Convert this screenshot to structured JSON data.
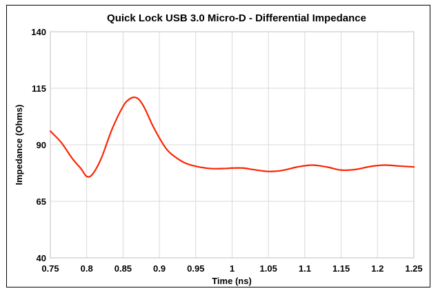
{
  "chart_data": {
    "type": "line",
    "title": "Quick Lock USB 3.0 Micro-D - Differential Impedance",
    "xlabel": "Time (ns)",
    "ylabel": "Impedance (Ohms)",
    "xlim": [
      0.75,
      1.25
    ],
    "ylim": [
      40,
      140
    ],
    "x_ticks": [
      "0.75",
      "0.8",
      "0.85",
      "0.9",
      "0.95",
      "1",
      "1.05",
      "1.1",
      "1.15",
      "1.2",
      "1.25"
    ],
    "y_ticks": [
      "40",
      "65",
      "90",
      "115",
      "140"
    ],
    "grid": true,
    "series_color": "#ff2200",
    "series": [
      {
        "x": [
          0.75,
          0.765,
          0.78,
          0.792,
          0.8,
          0.808,
          0.82,
          0.835,
          0.85,
          0.858,
          0.865,
          0.872,
          0.88,
          0.89,
          0.9,
          0.91,
          0.92,
          0.935,
          0.95,
          0.97,
          0.99,
          1.0,
          1.015,
          1.03,
          1.05,
          1.07,
          1.09,
          1.11,
          1.13,
          1.15,
          1.17,
          1.19,
          1.21,
          1.23,
          1.25
        ],
        "y": [
          96,
          91,
          84,
          79.5,
          76,
          77,
          84,
          97,
          107,
          110,
          111,
          110,
          106,
          99,
          93,
          88,
          85,
          82,
          80.5,
          79.5,
          79.5,
          79.7,
          79.7,
          79,
          78.2,
          78.7,
          80.2,
          81,
          80.2,
          78.8,
          79.1,
          80.4,
          81,
          80.6,
          80.2
        ]
      }
    ]
  }
}
